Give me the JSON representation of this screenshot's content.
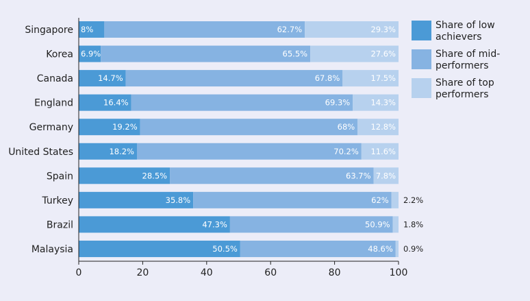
{
  "chart_data": {
    "type": "bar",
    "orientation": "horizontal",
    "stacked": true,
    "categories": [
      "Singapore",
      "Korea",
      "Canada",
      "England",
      "Germany",
      "United States",
      "Spain",
      "Turkey",
      "Brazil",
      "Malaysia"
    ],
    "series": [
      {
        "name": "Share of low achievers",
        "color": "#4b9ad6",
        "values": [
          8,
          6.9,
          14.7,
          16.4,
          19.2,
          18.2,
          28.5,
          35.8,
          47.3,
          50.5
        ],
        "labels": [
          "8%",
          "6.9%",
          "14.7%",
          "16.4%",
          "19.2%",
          "18.2%",
          "28.5%",
          "35.8%",
          "47.3%",
          "50.5%"
        ]
      },
      {
        "name": "Share of mid-performers",
        "color": "#86b3e2",
        "values": [
          62.7,
          65.5,
          67.8,
          69.3,
          68,
          70.2,
          63.7,
          62,
          50.9,
          48.6
        ],
        "labels": [
          "62.7%",
          "65.5%",
          "67.8%",
          "69.3%",
          "68%",
          "70.2%",
          "63.7%",
          "62%",
          "50.9%",
          "48.6%"
        ]
      },
      {
        "name": "Share of top performers",
        "color": "#b7d1ee",
        "values": [
          29.3,
          27.6,
          17.5,
          14.3,
          12.8,
          11.6,
          7.8,
          2.2,
          1.8,
          0.9
        ],
        "labels": [
          "29.3%",
          "27.6%",
          "17.5%",
          "14.3%",
          "12.8%",
          "11.6%",
          "7.8%",
          "2.2%",
          "1.8%",
          "0.9%"
        ]
      }
    ],
    "legend": [
      {
        "lines": [
          "Share of low",
          "achievers"
        ],
        "color": "#4b9ad6"
      },
      {
        "lines": [
          "Share of mid-",
          "performers"
        ],
        "color": "#86b3e2"
      },
      {
        "lines": [
          "Share of top",
          "performers"
        ],
        "color": "#b7d1ee"
      }
    ],
    "xlim": [
      0,
      100
    ],
    "xticks": [
      0,
      20,
      40,
      60,
      80,
      100
    ],
    "xtick_labels": [
      "0",
      "20",
      "40",
      "60",
      "80",
      "100"
    ],
    "title": "",
    "xlabel": "",
    "ylabel": "",
    "grid": false,
    "legend_position": "right"
  }
}
